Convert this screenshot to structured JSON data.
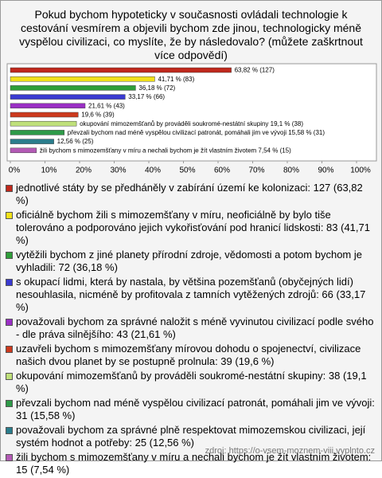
{
  "chart_data": {
    "type": "bar",
    "orientation": "horizontal",
    "title": "Pokud bychom hypoteticky v současnosti ovládali technologie k cestování vesmírem a objevili bychom zde jinou, technologicky méně vyspělou civilizaci, co myslíte, že by následovalo? (můžete zaškrtnout více odpovědí)",
    "categories": [
      "jednotlivé státy by se předháněly v zabírání území ke kolonizaci: 127 (63,82 %)",
      "oficiálně bychom žili s mimozemšťany v míru, neoficiálně by bylo tiše tolerováno a podporováno jejich vykořisťování pod hranicí lidskosti: 83 (41,71 %)",
      "vytěžili bychom z jiné planety přírodní zdroje, vědomosti a potom bychom je vyhladili: 72 (36,18 %)",
      "s okupací lidmi, která by nastala, by většina pozemšťanů (obyčejných lidí) nesouhlasila, nicméně by profitovala z tamních vytěžených zdrojů: 66 (33,17 %)",
      "považovali bychom za správné naložit s méně vyvinutou civilizací podle svého - dle práva silnějšího: 43 (21,61 %)",
      "uzavřeli bychom s mimozemšťany mírovou dohodu o spojenectví, civilizace našich dvou planet by se postupně prolnula: 39 (19,6 %)",
      "okupování mimozemšťanů by prováděli soukromé-nestátní skupiny: 38 (19,1 %)",
      "převzali bychom nad méně vyspělou civilizací patronát, pomáhali jim ve vývoji: 31 (15,58 %)",
      "považovali bychom za správné plně respektovat mimozemskou civilizaci, její systém hodnot a potřeby: 25 (12,56 %)",
      "žili bychom s mimozemšťany v míru a nechali bychom je žít vlastním životem: 15 (7,54 %)"
    ],
    "values": [
      63.82,
      41.71,
      36.18,
      33.17,
      21.61,
      19.6,
      19.1,
      15.58,
      12.56,
      7.54
    ],
    "value_labels": [
      "63,82 % (127)",
      "41,71 % (83)",
      "36,18 % (72)",
      "33,17 % (66)",
      "21,61 % (43)",
      "19,6 % (39)",
      "okupování mimozemšťanů by prováděli soukromé-nestátní skupiny 19,1 % (38)",
      "převzali bychom nad méně vyspělou civilizací patronát, pomáhali jim ve vývoji 15,58 % (31)",
      "12,56 % (25)",
      "žili bychom s mimozemšťany v míru a nechali bychom je žít vlastním životem 7,54 % (15)"
    ],
    "colors": [
      "#c0281c",
      "#f2e21a",
      "#2f9e3a",
      "#3a3ad0",
      "#9a2fc4",
      "#cc3a1e",
      "#bfe07a",
      "#2e9a48",
      "#2a7d8c",
      "#b35ab5"
    ],
    "xlim": [
      0,
      100
    ],
    "xticks": [
      {
        "value": 0,
        "label": "0%"
      },
      {
        "value": 10,
        "label": "10%"
      },
      {
        "value": 20,
        "label": "20%"
      },
      {
        "value": 30,
        "label": "30%"
      },
      {
        "value": 40,
        "label": "40%"
      },
      {
        "value": 50,
        "label": "50%"
      },
      {
        "value": 60,
        "label": "60%"
      },
      {
        "value": 70,
        "label": "70%"
      },
      {
        "value": 80,
        "label": "80%"
      },
      {
        "value": 90,
        "label": "90%"
      },
      {
        "value": 100,
        "label": "100%"
      }
    ],
    "source": "zdroj: https://o-vsem-moznem-viii.vyplnto.cz"
  }
}
